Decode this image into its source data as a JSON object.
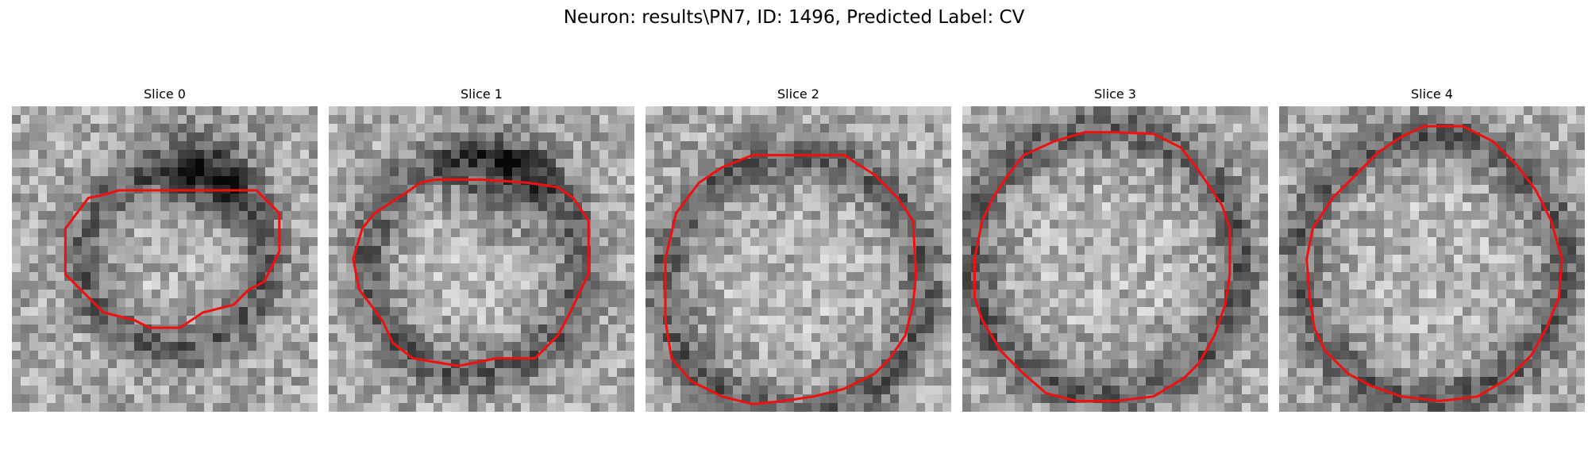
{
  "figure": {
    "title": "Neuron: results\\PN7, ID: 1496, Predicted Label: CV"
  },
  "colors": {
    "contour": "#ee1111",
    "background": "#ffffff"
  },
  "panels": [
    {
      "title": "Slice 0",
      "contour": [
        [
          13.5,
          5.5
        ],
        [
          16,
          5.5
        ],
        [
          17.5,
          7
        ],
        [
          17.5,
          9.5
        ],
        [
          17,
          10.5
        ],
        [
          16.5,
          11.5
        ],
        [
          15.5,
          12
        ],
        [
          14.5,
          13
        ],
        [
          12.5,
          13.5
        ],
        [
          11,
          14.5
        ],
        [
          9,
          14.5
        ],
        [
          8,
          14
        ],
        [
          6,
          13.5
        ],
        [
          4.5,
          12
        ],
        [
          3.5,
          11
        ],
        [
          3.5,
          8
        ],
        [
          5,
          6
        ],
        [
          6,
          5.8
        ],
        [
          7,
          5.5
        ],
        [
          10,
          5.5
        ]
      ]
    },
    {
      "title": "Slice 1",
      "contour": [
        [
          13,
          5
        ],
        [
          15,
          5.3
        ],
        [
          16,
          6
        ],
        [
          17,
          7.5
        ],
        [
          17,
          11
        ],
        [
          16.5,
          12
        ],
        [
          15.8,
          13.5
        ],
        [
          15,
          15
        ],
        [
          13.5,
          16.5
        ],
        [
          11,
          16.5
        ],
        [
          8.5,
          17
        ],
        [
          5.5,
          16.5
        ],
        [
          4.2,
          15.5
        ],
        [
          3.5,
          14
        ],
        [
          2,
          12
        ],
        [
          1.6,
          10
        ],
        [
          2.2,
          8
        ],
        [
          3,
          7
        ],
        [
          5,
          5.7
        ],
        [
          6,
          5
        ],
        [
          7,
          4.8
        ],
        [
          10,
          4.8
        ]
      ]
    },
    {
      "title": "Slice 2",
      "contour": [
        [
          10,
          3.2
        ],
        [
          13,
          3.2
        ],
        [
          15,
          4.5
        ],
        [
          16.5,
          6
        ],
        [
          17.5,
          7.5
        ],
        [
          17.7,
          11
        ],
        [
          17.5,
          13
        ],
        [
          17,
          15
        ],
        [
          16,
          16.5
        ],
        [
          15,
          17.5
        ],
        [
          13,
          18.5
        ],
        [
          11,
          19
        ],
        [
          9,
          19.3
        ],
        [
          7,
          19.5
        ],
        [
          5,
          19
        ],
        [
          3,
          18
        ],
        [
          1.7,
          16.5
        ],
        [
          1.3,
          14
        ],
        [
          1.3,
          10
        ],
        [
          2,
          7
        ],
        [
          3.5,
          5
        ],
        [
          5,
          4
        ],
        [
          7,
          3.2
        ]
      ]
    },
    {
      "title": "Slice 3",
      "contour": [
        [
          10,
          1.7
        ],
        [
          12.5,
          1.8
        ],
        [
          14.3,
          2.7
        ],
        [
          15.3,
          4
        ],
        [
          16,
          5
        ],
        [
          17,
          6.5
        ],
        [
          17.5,
          8
        ],
        [
          17.5,
          11
        ],
        [
          17.2,
          13
        ],
        [
          16.5,
          15
        ],
        [
          15.5,
          16.8
        ],
        [
          14.5,
          17.8
        ],
        [
          12.5,
          19
        ],
        [
          10,
          19.3
        ],
        [
          7.5,
          19.3
        ],
        [
          5.5,
          18.8
        ],
        [
          4,
          17.5
        ],
        [
          2.5,
          16
        ],
        [
          1.3,
          14
        ],
        [
          0.8,
          12.5
        ],
        [
          0.8,
          10
        ],
        [
          1.3,
          7.5
        ],
        [
          2,
          6
        ],
        [
          3,
          4.5
        ],
        [
          4,
          3.2
        ],
        [
          6,
          2.3
        ],
        [
          8,
          1.7
        ]
      ]
    },
    {
      "title": "Slice 4",
      "contour": [
        [
          9.5,
          1.3
        ],
        [
          12,
          1.3
        ],
        [
          14,
          2.3
        ],
        [
          15.5,
          3.8
        ],
        [
          16.8,
          5.5
        ],
        [
          17.8,
          7.5
        ],
        [
          18.5,
          10
        ],
        [
          18.3,
          12.5
        ],
        [
          17.5,
          14.5
        ],
        [
          16.5,
          16.3
        ],
        [
          15,
          17.8
        ],
        [
          13,
          19
        ],
        [
          10.5,
          19.3
        ],
        [
          8,
          19
        ],
        [
          6,
          18.3
        ],
        [
          4.5,
          17.5
        ],
        [
          3,
          16
        ],
        [
          2.3,
          14.5
        ],
        [
          2,
          12.5
        ],
        [
          1.8,
          10
        ],
        [
          2.2,
          8
        ],
        [
          3.5,
          6
        ],
        [
          5,
          4.5
        ],
        [
          6.5,
          3
        ],
        [
          8,
          2
        ]
      ]
    }
  ]
}
